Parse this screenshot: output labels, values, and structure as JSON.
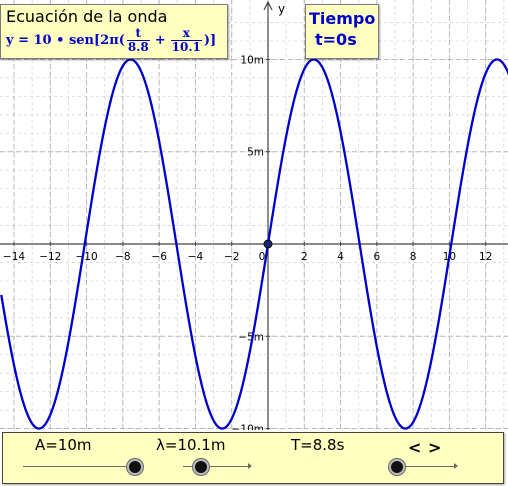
{
  "equation_panel": {
    "title": "Ecuación de la onda",
    "formula_prefix": "y = 10 • sen[2π(",
    "frac1_num": "t",
    "frac1_den": "8.8",
    "plus": "+",
    "frac2_num": "x",
    "frac2_den": "10.1",
    "formula_suffix": ")]"
  },
  "time_panel": {
    "title": "Tiempo",
    "value": "t=0s"
  },
  "controls": {
    "amplitude_label": "A=10m",
    "wavelength_label": "λ=10.1m",
    "period_label": "T=8.8s",
    "prev_label": "<",
    "next_label": ">"
  },
  "colors": {
    "curve": "#0000cc",
    "panel_bg": "#ffffc0",
    "point": "#1a2a6e"
  },
  "chart_data": {
    "type": "line",
    "function": "y = 10 * sin(2*pi*(t/8.8 + x/10.1))",
    "amplitude": 10,
    "wavelength": 10.1,
    "period": 8.8,
    "time": 0,
    "xlim": [
      -14.7,
      13.3
    ],
    "ylim": [
      -10.5,
      12.8
    ],
    "x_ticks": [
      -14,
      -12,
      -10,
      -8,
      -6,
      -4,
      -2,
      0,
      2,
      4,
      6,
      8,
      10,
      12
    ],
    "x_tick_labels": [
      "−14",
      "−12",
      "−10",
      "−8",
      "−6",
      "−4",
      "−2",
      "0",
      "2",
      "4",
      "6",
      "8",
      "10",
      "12"
    ],
    "y_ticks": [
      -10,
      -5,
      5,
      10
    ],
    "y_tick_labels": [
      "−10m",
      "−5m",
      "5m",
      "10m"
    ],
    "ylabel": "y",
    "grid": true,
    "marked_point": {
      "x": 0,
      "y": 0
    }
  }
}
